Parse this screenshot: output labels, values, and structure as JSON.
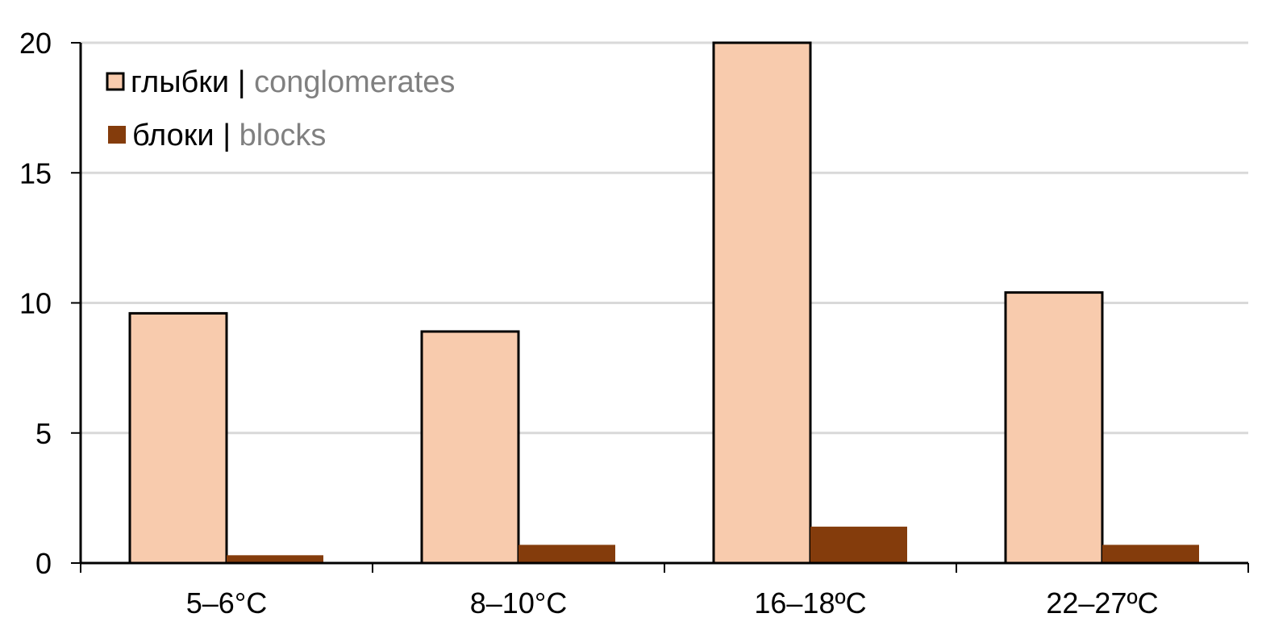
{
  "chart_data": {
    "type": "bar",
    "categories": [
      "5–6°C",
      "8–10°C",
      "16–18ºC",
      "22–27ºC"
    ],
    "series": [
      {
        "name": "глыбки | conglomerates",
        "name_ru": "глыбки",
        "separator": " | ",
        "name_en": "conglomerates",
        "values": [
          9.6,
          8.9,
          20.0,
          10.4
        ],
        "color": "#F8CBAD",
        "stroke": "#000000"
      },
      {
        "name": "блоки | blocks",
        "name_ru": "блоки",
        "separator": " | ",
        "name_en": "blocks",
        "values": [
          0.3,
          0.7,
          1.4,
          0.7
        ],
        "color": "#843C0C",
        "stroke": "none"
      }
    ],
    "ylim": [
      0,
      20
    ],
    "yticks": [
      "0",
      "5",
      "10",
      "15",
      "20"
    ],
    "title": "",
    "xlabel": "",
    "ylabel": "",
    "grid": true,
    "legend_position": "top-left",
    "colors": {
      "grid": "#D9D9D9",
      "axis": "#000000",
      "legend_secondary_text": "#808080"
    }
  }
}
